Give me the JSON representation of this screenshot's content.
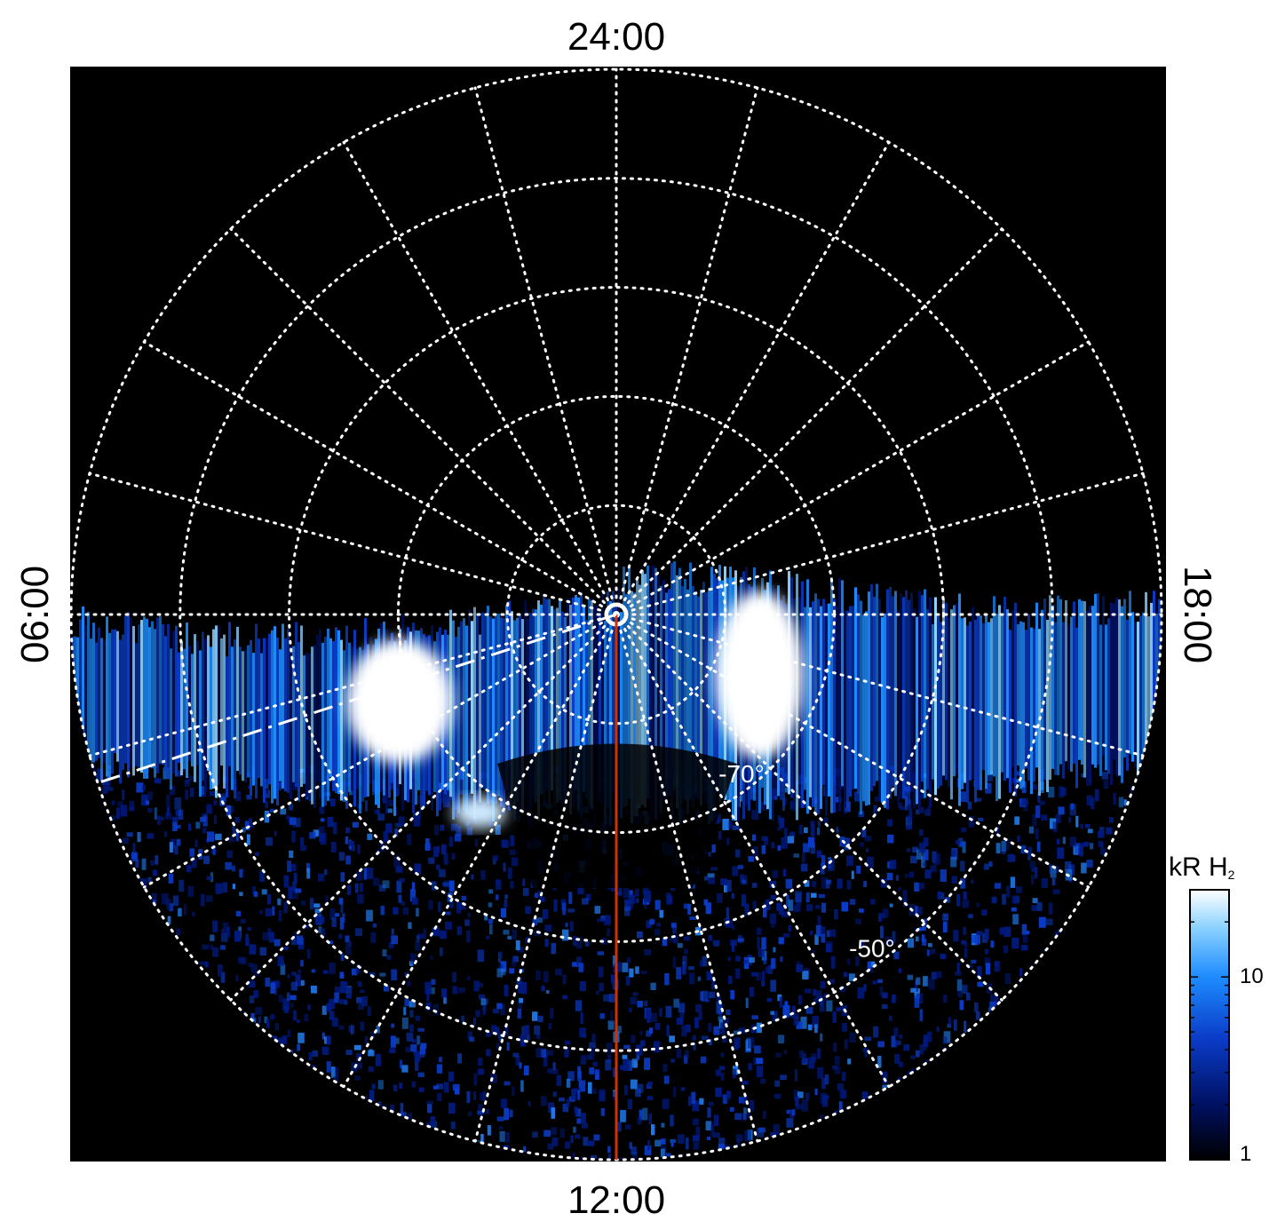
{
  "chart_data": {
    "type": "heatmap",
    "projection": "polar",
    "title": "",
    "local_time_labels": {
      "top": "24:00",
      "bottom": "12:00",
      "left": "06:00",
      "right": "18:00"
    },
    "latitude_labels": [
      {
        "lat": -70,
        "text": "-70°"
      },
      {
        "lat": -50,
        "text": "-50°"
      }
    ],
    "latitude_circles_deg": [
      -80,
      -70,
      -60,
      -50,
      -40
    ],
    "local_time_spokes_hours": [
      0,
      1,
      2,
      3,
      4,
      5,
      6,
      7,
      8,
      9,
      10,
      11,
      12,
      13,
      14,
      15,
      16,
      17,
      18,
      19,
      20,
      21,
      22,
      23
    ],
    "colorbar": {
      "label": "kR H",
      "label_subscript": "2",
      "scale": "log",
      "range": [
        1,
        30
      ],
      "ticks": [
        {
          "value": 1,
          "label": "1"
        },
        {
          "value": 10,
          "label": "10"
        }
      ],
      "colors": [
        "#000000",
        "#001060",
        "#0a3cc8",
        "#1e8cff",
        "#8cd2ff",
        "#ffffff"
      ]
    },
    "emission_region": {
      "local_time_start_h": 6,
      "local_time_end_h": 18,
      "bright_spots_local_time_h": [
        8.5,
        15.5
      ]
    },
    "annotations": [
      {
        "type": "red-meridian",
        "local_time_h": 12,
        "color": "#cc3300"
      },
      {
        "type": "dashed-line",
        "local_time_h": 7.2,
        "color": "#ffffff"
      }
    ],
    "background_color": "#000000",
    "grid_color": "#ffffff",
    "grid_style": "dotted"
  }
}
